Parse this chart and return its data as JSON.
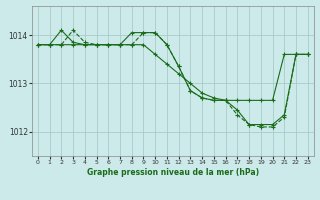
{
  "background_color": "#cceaea",
  "grid_color": "#aacaca",
  "line_color": "#1a6b1a",
  "xlabel": "Graphe pression niveau de la mer (hPa)",
  "xlim": [
    -0.5,
    23.5
  ],
  "ylim": [
    1011.5,
    1014.6
  ],
  "yticks": [
    1012,
    1013,
    1014
  ],
  "xticks": [
    0,
    1,
    2,
    3,
    4,
    5,
    6,
    7,
    8,
    9,
    10,
    11,
    12,
    13,
    14,
    15,
    16,
    17,
    18,
    19,
    20,
    21,
    22,
    23
  ],
  "series": [
    {
      "x": [
        0,
        1,
        2,
        3,
        4,
        5,
        6,
        7,
        8,
        9,
        10,
        11,
        12,
        13,
        14,
        15,
        16,
        17,
        18,
        19,
        20,
        21,
        22,
        23
      ],
      "y": [
        1013.8,
        1013.8,
        1013.8,
        1013.8,
        1013.8,
        1013.8,
        1013.8,
        1013.8,
        1013.8,
        1013.8,
        1013.6,
        1013.4,
        1013.2,
        1013.0,
        1012.8,
        1012.7,
        1012.65,
        1012.65,
        1012.65,
        1012.65,
        1012.65,
        1013.6,
        1013.6,
        1013.6
      ],
      "style": "-",
      "marker": "+"
    },
    {
      "x": [
        0,
        1,
        2,
        3,
        4,
        5,
        6,
        7,
        8,
        9,
        10,
        11,
        12,
        13,
        14,
        15,
        16,
        17,
        18,
        19,
        20,
        21,
        22,
        23
      ],
      "y": [
        1013.8,
        1013.8,
        1014.1,
        1013.85,
        1013.8,
        1013.8,
        1013.8,
        1013.8,
        1014.05,
        1014.05,
        1014.05,
        1013.8,
        1013.35,
        1012.85,
        1012.7,
        1012.65,
        1012.65,
        1012.45,
        1012.15,
        1012.15,
        1012.15,
        1012.35,
        1013.6,
        1013.6
      ],
      "style": "-",
      "marker": "+"
    },
    {
      "x": [
        0,
        1,
        2,
        3,
        4,
        5,
        6,
        7,
        8,
        9,
        10,
        11,
        12,
        13,
        14,
        15,
        16,
        17,
        18,
        19,
        20,
        21,
        22,
        23
      ],
      "y": [
        1013.8,
        1013.8,
        1013.8,
        1014.1,
        1013.85,
        1013.8,
        1013.8,
        1013.8,
        1013.8,
        1014.05,
        1014.05,
        1013.8,
        1013.35,
        1012.85,
        1012.7,
        1012.65,
        1012.65,
        1012.35,
        1012.15,
        1012.1,
        1012.1,
        1012.3,
        1013.6,
        1013.6
      ],
      "style": "--",
      "marker": "+"
    }
  ]
}
